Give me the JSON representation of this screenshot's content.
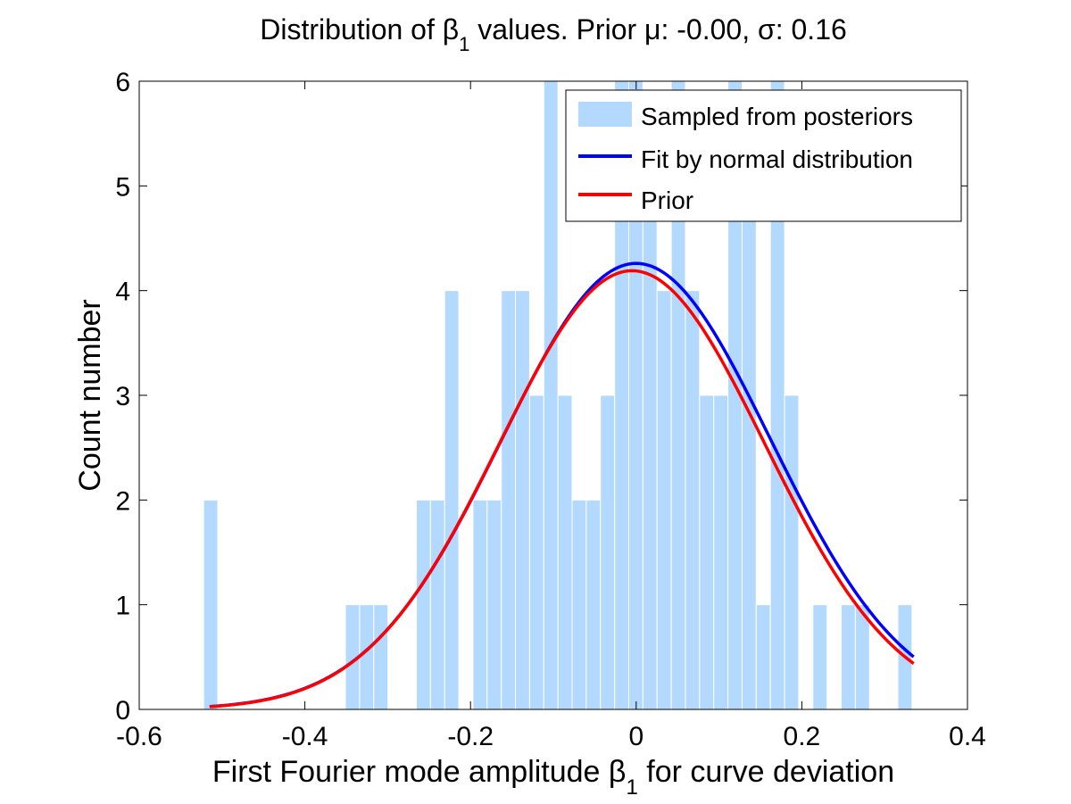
{
  "chart_data": {
    "type": "bar",
    "title": {
      "prefix": "Distribution of β",
      "subscript": "1",
      "suffix": " values. Prior μ: -0.00, σ: 0.16"
    },
    "xlabel": {
      "prefix": "First Fourier mode amplitude β",
      "subscript": "1",
      "suffix": " for curve deviation"
    },
    "ylabel": "Count number",
    "xlim": [
      -0.6,
      0.4
    ],
    "ylim": [
      0,
      6
    ],
    "xticks": [
      -0.6,
      -0.4,
      -0.2,
      0,
      0.2,
      0.4
    ],
    "xtick_labels": [
      "-0.6",
      "-0.4",
      "-0.2",
      "0",
      "0.2",
      "0.4"
    ],
    "yticks": [
      0,
      1,
      2,
      3,
      4,
      5,
      6
    ],
    "ytick_labels": [
      "0",
      "1",
      "2",
      "3",
      "4",
      "5",
      "6"
    ],
    "grid": false,
    "legend_position": "top-right",
    "series": [
      {
        "name": "Sampled from posteriors",
        "kind": "histogram",
        "color": "#b3d9ff",
        "bin_width": 0.0171,
        "bin_centers": [
          -0.5137,
          -0.3425,
          -0.3254,
          -0.3083,
          -0.2569,
          -0.2398,
          -0.2227,
          -0.1885,
          -0.1714,
          -0.1543,
          -0.1372,
          -0.1201,
          -0.103,
          -0.0859,
          -0.0688,
          -0.0517,
          -0.0346,
          -0.0175,
          -0.0004,
          0.0167,
          0.0338,
          0.0509,
          0.068,
          0.0851,
          0.1022,
          0.1193,
          0.1364,
          0.1535,
          0.1706,
          0.1877,
          0.2219,
          0.2561,
          0.2732,
          0.3245
        ],
        "counts": [
          2,
          1,
          1,
          1,
          2,
          2,
          4,
          2,
          2,
          4,
          4,
          3,
          6,
          3,
          2,
          2,
          3,
          6,
          6,
          5,
          4,
          6,
          4,
          3,
          3,
          6,
          5,
          1,
          6,
          3,
          1,
          1,
          1,
          1
        ]
      },
      {
        "name": "Fit by normal distribution",
        "kind": "line",
        "color": "#0000ff",
        "mu": 0.0,
        "sigma": 0.162,
        "peak": 4.26,
        "x_range": [
          -0.515,
          0.335
        ]
      },
      {
        "name": "Prior",
        "kind": "line",
        "color": "#ff0000",
        "mu": -0.005,
        "sigma": 0.16,
        "peak": 4.19,
        "x_range": [
          -0.515,
          0.335
        ]
      }
    ]
  }
}
